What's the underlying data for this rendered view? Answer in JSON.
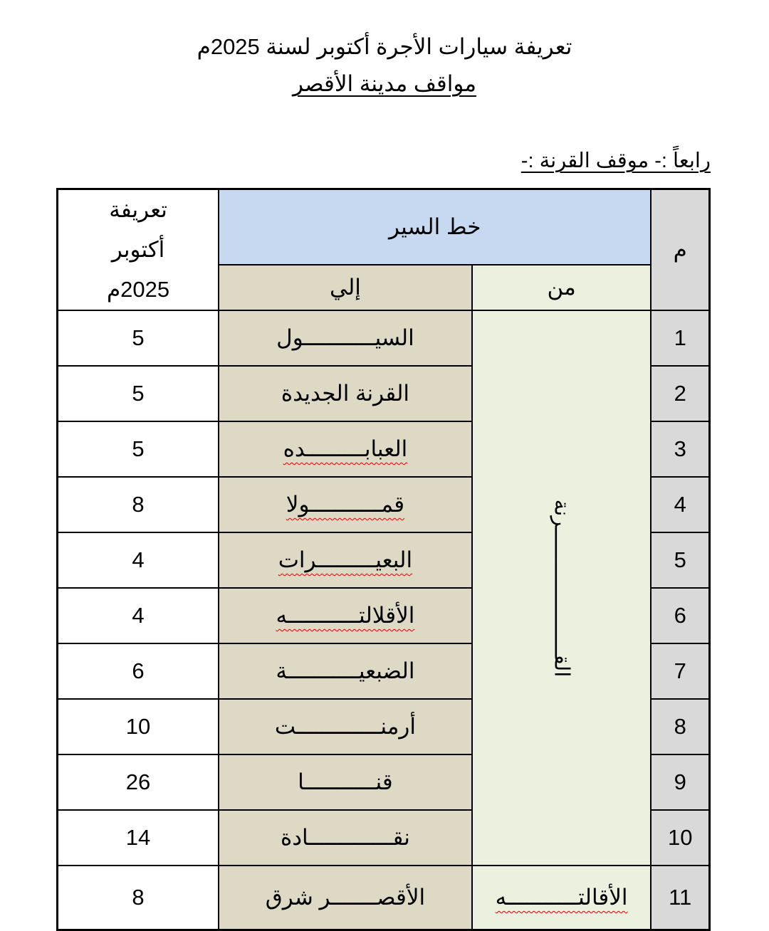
{
  "header": {
    "title": "تعريفة سيارات الأجرة أكتوبر لسنة 2025م",
    "subtitle": "مواقف مدينة الأقصر",
    "section": "رابعاً :- موقف القرنة :-"
  },
  "table": {
    "col_num": "م",
    "col_route": "خط السير",
    "col_from": "من",
    "col_to": "إلي",
    "col_tariff": "تعريفة أكتوبر 2025م",
    "merged_from": "القـــــــــــــــــــــرنة",
    "rows": [
      {
        "num": "1",
        "to": "السيـــــــــــول",
        "tariff": "5"
      },
      {
        "num": "2",
        "to": "القرنة الجديدة",
        "tariff": "5"
      },
      {
        "num": "3",
        "to": "العبابـــــــــده",
        "tariff": "5"
      },
      {
        "num": "4",
        "to": "قمـــــــــــولا",
        "tariff": "8"
      },
      {
        "num": "5",
        "to": "البعيـــــــــرات",
        "tariff": "4"
      },
      {
        "num": "6",
        "to": "الأقلالتـــــــــــه",
        "tariff": "4"
      },
      {
        "num": "7",
        "to": "الضبعيـــــــــــة",
        "tariff": "6"
      },
      {
        "num": "8",
        "to": "أرمنـــــــــــــت",
        "tariff": "10"
      },
      {
        "num": "9",
        "to": "قنـــــــــــا",
        "tariff": "26"
      },
      {
        "num": "10",
        "to": "نقـــــــــــــادة",
        "tariff": "14"
      },
      {
        "num": "11",
        "from": "الأقالتـــــــــــه",
        "to": "الأقصـــــــر شرق",
        "tariff": "8"
      }
    ]
  },
  "colors": {
    "header_blue": "#c6d9f0",
    "to_col": "#ddd9c4",
    "from_col": "#ebf1de",
    "num_col": "#d9d9d9"
  }
}
